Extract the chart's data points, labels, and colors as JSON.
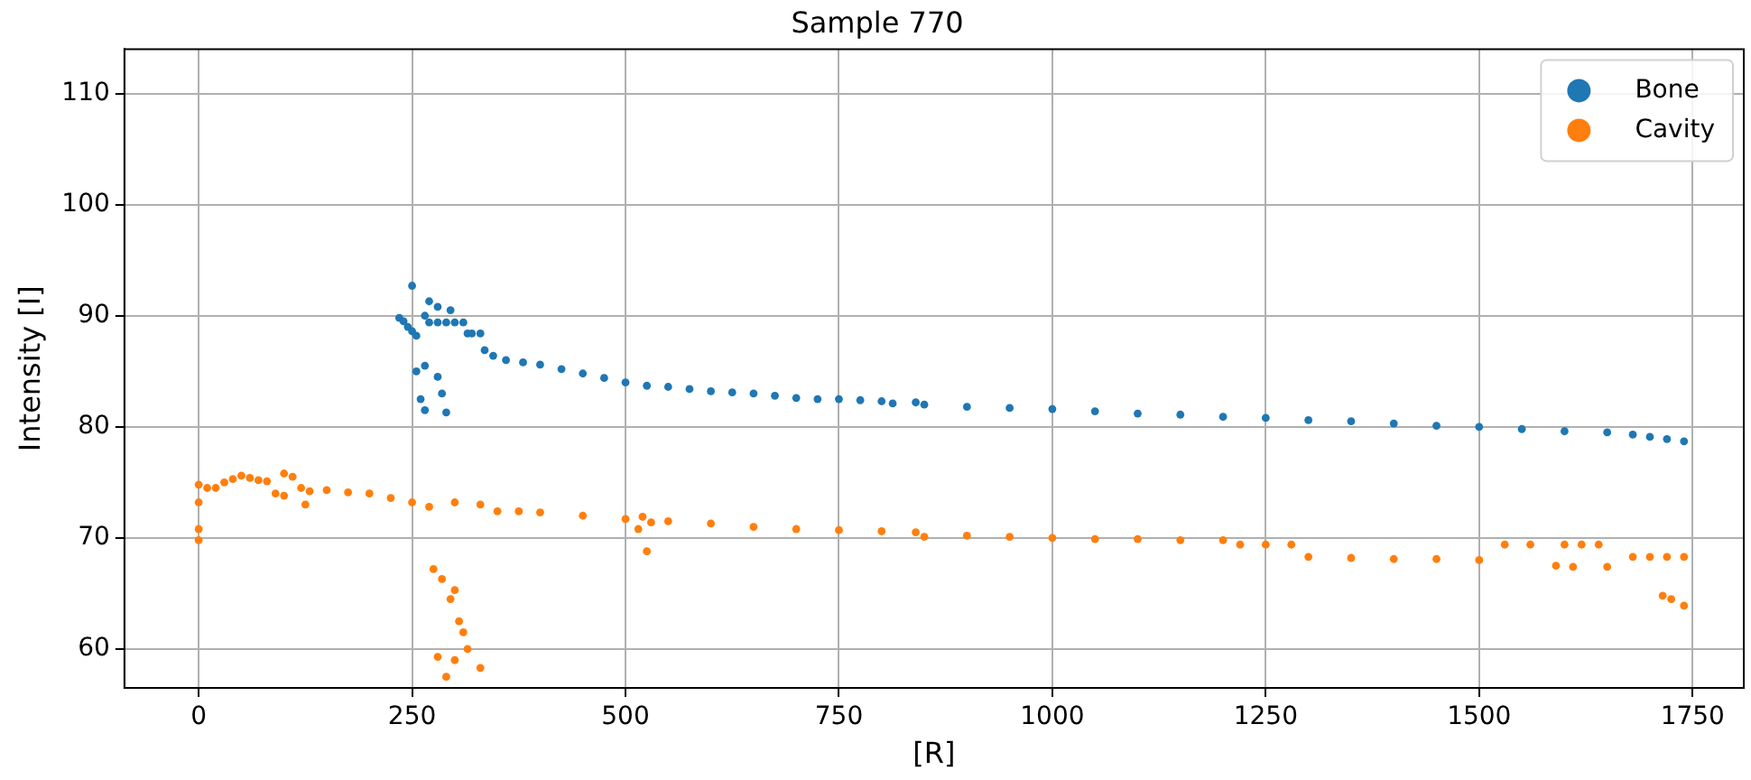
{
  "chart_data": {
    "type": "scatter",
    "title": "Sample 770",
    "xlabel": "[R]",
    "ylabel": "Intensity [I]",
    "xlim": [
      -87,
      1810
    ],
    "ylim": [
      56.5,
      114
    ],
    "xticks": [
      0,
      250,
      500,
      750,
      1000,
      1250,
      1500,
      1750
    ],
    "yticks": [
      60,
      70,
      80,
      90,
      100,
      110
    ],
    "grid": true,
    "legend": "top right",
    "marker": "circle",
    "series": [
      {
        "name": "Bone",
        "color": "#1f77b4",
        "x": [
          235,
          240,
          245,
          250,
          255,
          250,
          265,
          270,
          280,
          295,
          255,
          265,
          280,
          260,
          265,
          285,
          290,
          270,
          280,
          290,
          300,
          310,
          315,
          320,
          330,
          335,
          345,
          360,
          380,
          400,
          425,
          450,
          475,
          500,
          525,
          550,
          575,
          600,
          625,
          650,
          675,
          700,
          725,
          750,
          775,
          800,
          813,
          840,
          850,
          900,
          950,
          1000,
          1050,
          1100,
          1150,
          1200,
          1250,
          1300,
          1350,
          1400,
          1450,
          1500,
          1550,
          1600,
          1650,
          1680,
          1700,
          1720,
          1740
        ],
        "values": [
          89.8,
          89.5,
          89.0,
          88.6,
          88.2,
          92.7,
          90.0,
          91.3,
          90.8,
          90.5,
          85.0,
          85.5,
          84.5,
          82.5,
          81.5,
          83.0,
          81.3,
          89.4,
          89.4,
          89.4,
          89.4,
          89.4,
          88.4,
          88.4,
          88.4,
          86.9,
          86.4,
          86.0,
          85.8,
          85.6,
          85.2,
          84.8,
          84.4,
          84.0,
          83.7,
          83.6,
          83.4,
          83.2,
          83.1,
          83.0,
          82.8,
          82.6,
          82.5,
          82.5,
          82.4,
          82.3,
          82.1,
          82.2,
          82.0,
          81.8,
          81.7,
          81.6,
          81.4,
          81.2,
          81.1,
          80.9,
          80.8,
          80.6,
          80.5,
          80.3,
          80.1,
          80.0,
          79.8,
          79.6,
          79.5,
          79.3,
          79.1,
          78.9,
          78.7
        ]
      },
      {
        "name": "Cavity",
        "color": "#ff7f0e",
        "x": [
          0,
          0,
          0,
          0,
          10,
          20,
          30,
          40,
          50,
          60,
          70,
          80,
          90,
          100,
          100,
          110,
          120,
          125,
          130,
          150,
          175,
          200,
          225,
          250,
          270,
          300,
          330,
          350,
          375,
          400,
          450,
          500,
          515,
          520,
          525,
          530,
          550,
          600,
          650,
          700,
          750,
          800,
          840,
          850,
          900,
          950,
          1000,
          1050,
          1100,
          1150,
          1200,
          1220,
          1250,
          1280,
          1300,
          1350,
          1400,
          1450,
          1500,
          1530,
          1560,
          1600,
          1620,
          1640,
          1590,
          1610,
          1650,
          1680,
          1700,
          1720,
          1740,
          1715,
          1725,
          1740,
          275,
          285,
          300,
          295,
          305,
          310,
          300,
          280,
          290,
          330,
          315
        ],
        "values": [
          74.8,
          73.2,
          70.8,
          69.8,
          74.5,
          74.5,
          75.0,
          75.3,
          75.6,
          75.4,
          75.2,
          75.1,
          74.0,
          75.8,
          73.8,
          75.5,
          74.5,
          73.0,
          74.2,
          74.3,
          74.1,
          74.0,
          73.6,
          73.2,
          72.8,
          73.2,
          73.0,
          72.4,
          72.4,
          72.3,
          72.0,
          71.7,
          70.8,
          71.9,
          68.8,
          71.4,
          71.5,
          71.3,
          71.0,
          70.8,
          70.7,
          70.6,
          70.5,
          70.1,
          70.2,
          70.1,
          70.0,
          69.9,
          69.9,
          69.8,
          69.8,
          69.4,
          69.4,
          69.4,
          68.3,
          68.2,
          68.1,
          68.1,
          68.0,
          69.4,
          69.4,
          69.4,
          69.4,
          69.4,
          67.5,
          67.4,
          67.4,
          68.3,
          68.3,
          68.3,
          68.3,
          64.8,
          64.5,
          63.9,
          67.2,
          66.3,
          65.3,
          64.5,
          62.5,
          61.5,
          59.0,
          59.3,
          57.5,
          58.3,
          60.0
        ]
      }
    ]
  }
}
